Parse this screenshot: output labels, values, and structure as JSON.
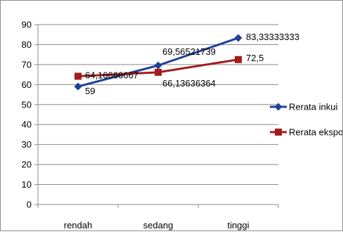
{
  "chart_data": {
    "type": "line",
    "categories": [
      "rendah",
      "sedang",
      "tinggi"
    ],
    "ylim": [
      0,
      90
    ],
    "yticks": [
      0,
      10,
      20,
      30,
      40,
      50,
      60,
      70,
      80,
      90
    ],
    "grid": true,
    "legend_position": "right",
    "series": [
      {
        "name": "Rerata inkui",
        "color": "#1f3f9a",
        "marker": "diamond",
        "values": [
          59,
          69.56521739,
          83.33333333
        ],
        "labels": [
          "59",
          "69,56521739",
          "83,33333333"
        ]
      },
      {
        "name": "Rerata ekspo",
        "color": "#a31c1c",
        "marker": "square",
        "values": [
          64.16666667,
          66.13636364,
          72.5
        ],
        "labels": [
          "64,16666667",
          "66,13636364",
          "72,5"
        ]
      }
    ]
  }
}
